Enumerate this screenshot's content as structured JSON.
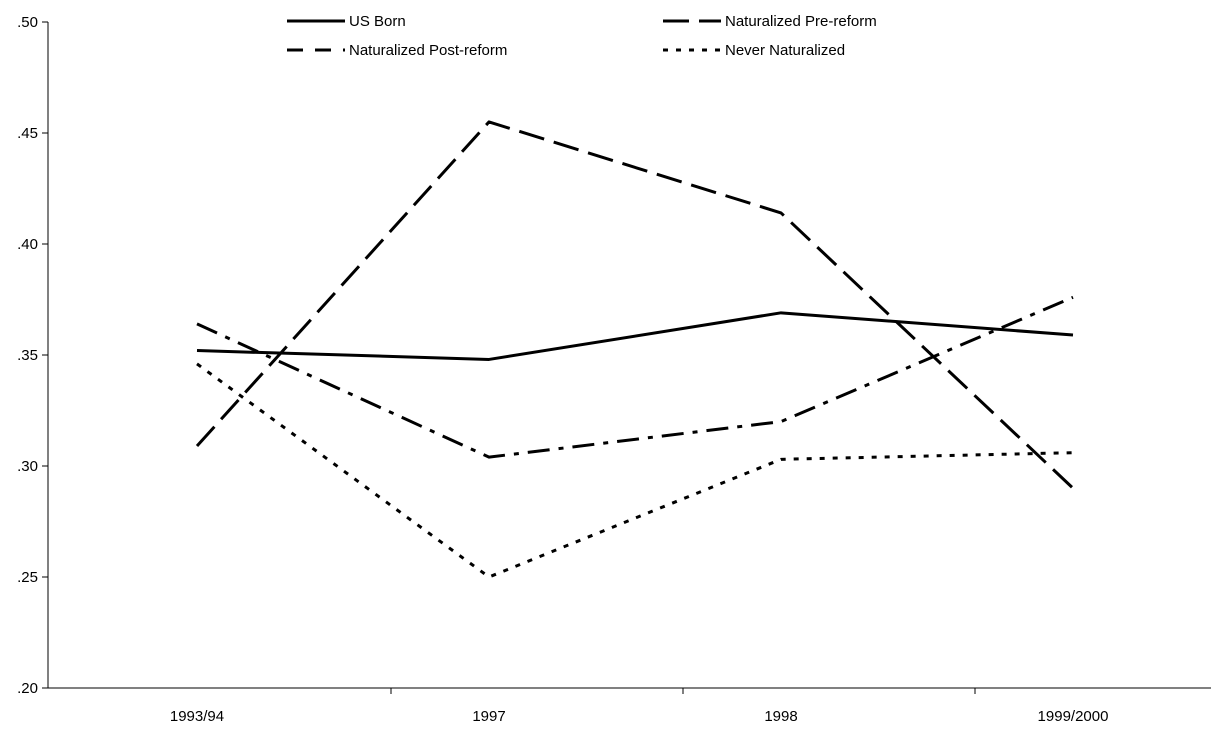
{
  "chart_data": {
    "type": "line",
    "categories": [
      "1993/94",
      "1997",
      "1998",
      "1999/2000"
    ],
    "ylim": [
      0.2,
      0.5
    ],
    "yticks": [
      ".20",
      ".25",
      ".30",
      ".35",
      ".40",
      ".45",
      ".50"
    ],
    "ytick_values": [
      0.2,
      0.25,
      0.3,
      0.35,
      0.4,
      0.45,
      0.5
    ],
    "grid": false,
    "legend_position": "top",
    "series": [
      {
        "name": "US Born",
        "values": [
          0.352,
          0.348,
          0.369,
          0.359
        ],
        "style": "solid",
        "color": "#000000"
      },
      {
        "name": "Naturalized Pre-reform",
        "values": [
          0.309,
          0.455,
          0.414,
          0.29
        ],
        "style": "long-dash",
        "color": "#000000"
      },
      {
        "name": "Naturalized Post-reform",
        "values": [
          0.364,
          0.304,
          0.32,
          0.376
        ],
        "style": "dash-dot",
        "color": "#000000"
      },
      {
        "name": "Never Naturalized",
        "values": [
          0.346,
          0.25,
          0.303,
          0.306
        ],
        "style": "dotted",
        "color": "#000000"
      }
    ]
  }
}
